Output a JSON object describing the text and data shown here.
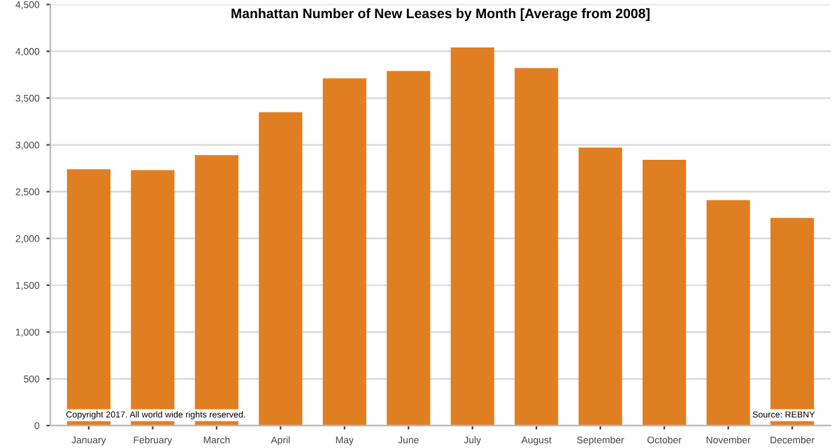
{
  "chart_data": {
    "type": "bar",
    "title": "Manhattan Number of New Leases by Month [Average from 2008]",
    "categories": [
      "January",
      "February",
      "March",
      "April",
      "May",
      "June",
      "July",
      "August",
      "September",
      "October",
      "November",
      "December"
    ],
    "values": [
      2740,
      2730,
      2890,
      3350,
      3710,
      3790,
      4040,
      3820,
      2970,
      2840,
      2410,
      2220
    ],
    "color": "#e07f22",
    "ylim": [
      0,
      4500
    ],
    "yticks": [
      0,
      {
        "value": 500,
        "label": "500"
      },
      {
        "value": 1000,
        "label": "1,000"
      },
      {
        "value": 1500,
        "label": "1,500"
      },
      {
        "value": 2000,
        "label": "2,000"
      },
      {
        "value": 2500,
        "label": "2,500"
      },
      {
        "value": 3000,
        "label": "3,000"
      },
      {
        "value": 3500,
        "label": "3,500"
      },
      {
        "value": 4000,
        "label": "4,000"
      },
      {
        "value": 4500,
        "label": "4,500"
      }
    ],
    "grid": "y",
    "annotations": [
      "Copyright 2017. All world wide rights reserved.",
      "Source: REBNY"
    ]
  }
}
